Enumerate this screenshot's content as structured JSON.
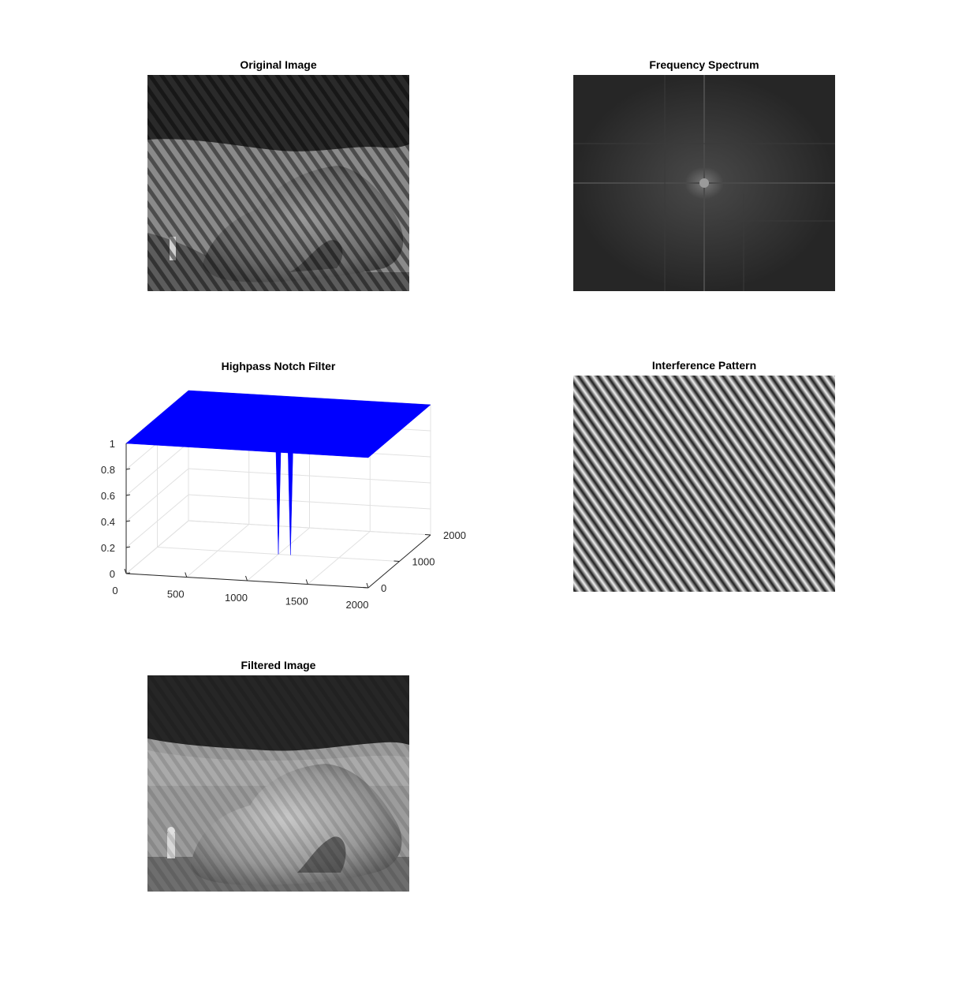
{
  "figure": {
    "panels": [
      {
        "id": "original",
        "title": "Original Image"
      },
      {
        "id": "spectrum",
        "title": "Frequency Spectrum"
      },
      {
        "id": "notch",
        "title": "Highpass Notch Filter"
      },
      {
        "id": "interference",
        "title": "Interference Pattern"
      },
      {
        "id": "filtered",
        "title": "Filtered Image"
      }
    ]
  },
  "chart_data": {
    "type": "surface",
    "title": "Highpass Notch Filter",
    "surface_color": "#0000FF",
    "x_ticks": [
      "0",
      "500",
      "1000",
      "1500",
      "2000"
    ],
    "y_ticks": [
      "0",
      "1000",
      "2000"
    ],
    "z_ticks": [
      "0",
      "0.2",
      "0.4",
      "0.6",
      "0.8",
      "1"
    ],
    "xlim": [
      0,
      2000
    ],
    "ylim": [
      0,
      2000
    ],
    "zlim": [
      0,
      1
    ],
    "plane_value": 1,
    "notches": [
      {
        "x": 1000,
        "y": 1000,
        "z": 0
      },
      {
        "x": 1100,
        "y": 1000,
        "z": 0
      }
    ],
    "grid": true
  }
}
